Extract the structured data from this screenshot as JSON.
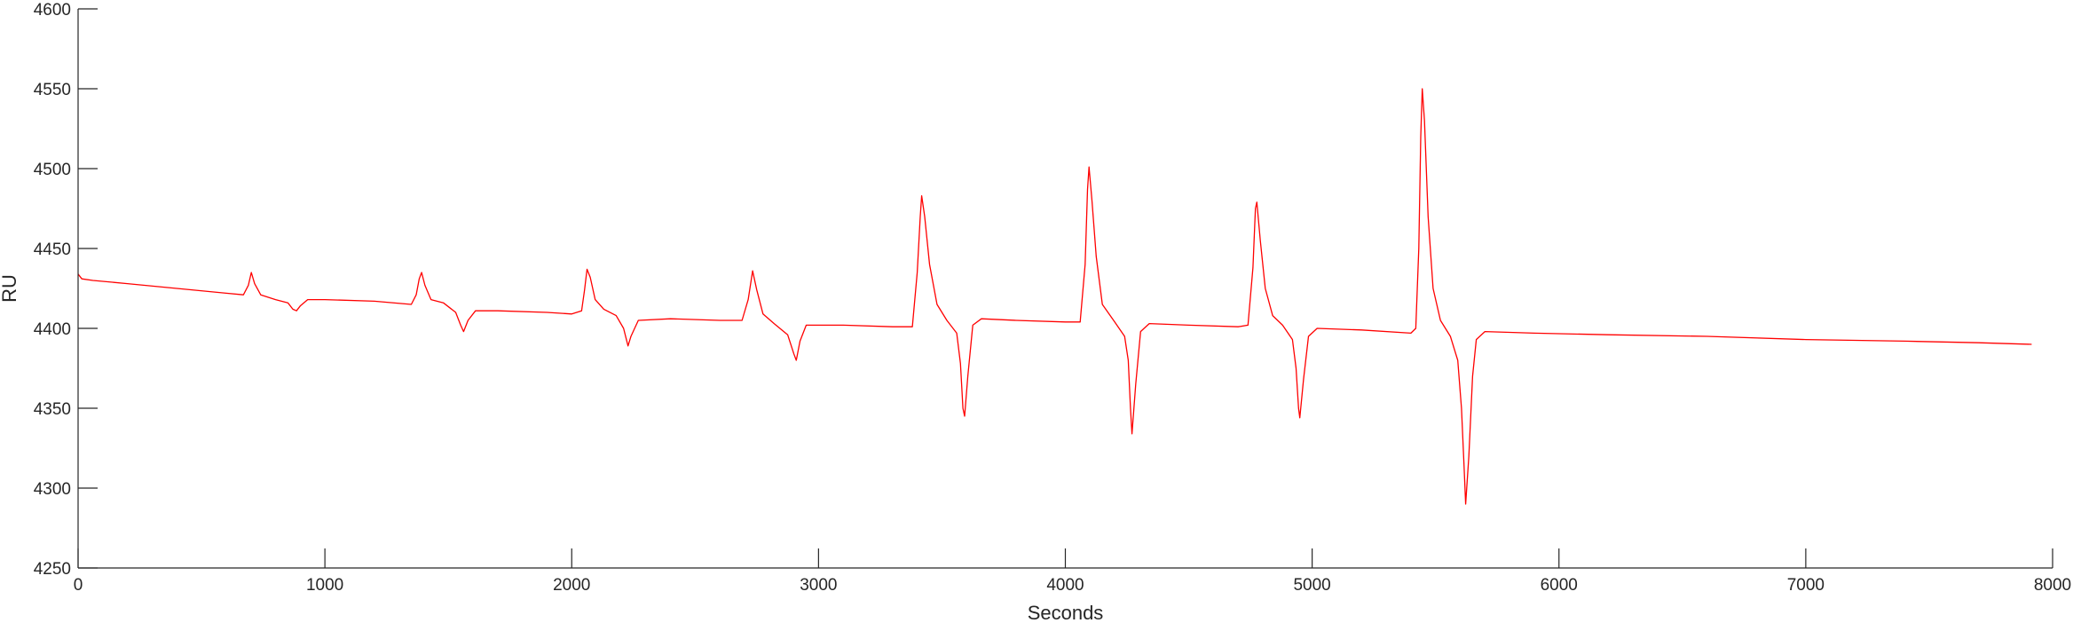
{
  "chart_data": {
    "type": "line",
    "title": "",
    "xlabel": "Seconds",
    "ylabel": "RU",
    "xlim": [
      0,
      8000
    ],
    "ylim": [
      4250,
      4600
    ],
    "xticks": [
      0,
      1000,
      2000,
      3000,
      4000,
      5000,
      6000,
      7000,
      8000
    ],
    "yticks": [
      4250,
      4300,
      4350,
      4400,
      4450,
      4500,
      4550,
      4600
    ],
    "grid": false,
    "legend": "none",
    "series": [
      {
        "color": "#ff0000",
        "points": [
          [
            0,
            4434
          ],
          [
            15,
            4431
          ],
          [
            60,
            4430
          ],
          [
            200,
            4428
          ],
          [
            400,
            4425
          ],
          [
            600,
            4422
          ],
          [
            670,
            4421
          ],
          [
            690,
            4427
          ],
          [
            702,
            4435
          ],
          [
            715,
            4428
          ],
          [
            740,
            4421
          ],
          [
            800,
            4418
          ],
          [
            850,
            4416
          ],
          [
            870,
            4412
          ],
          [
            885,
            4411
          ],
          [
            900,
            4414
          ],
          [
            930,
            4418
          ],
          [
            1000,
            4418
          ],
          [
            1200,
            4417
          ],
          [
            1350,
            4415
          ],
          [
            1370,
            4421
          ],
          [
            1382,
            4431
          ],
          [
            1392,
            4435
          ],
          [
            1405,
            4427
          ],
          [
            1430,
            4418
          ],
          [
            1480,
            4416
          ],
          [
            1530,
            4410
          ],
          [
            1550,
            4402
          ],
          [
            1562,
            4398
          ],
          [
            1580,
            4405
          ],
          [
            1610,
            4411
          ],
          [
            1700,
            4411
          ],
          [
            1900,
            4410
          ],
          [
            2000,
            4409
          ],
          [
            2040,
            4411
          ],
          [
            2052,
            4424
          ],
          [
            2062,
            4437
          ],
          [
            2075,
            4432
          ],
          [
            2095,
            4418
          ],
          [
            2130,
            4412
          ],
          [
            2180,
            4408
          ],
          [
            2210,
            4400
          ],
          [
            2228,
            4389
          ],
          [
            2240,
            4395
          ],
          [
            2270,
            4405
          ],
          [
            2400,
            4406
          ],
          [
            2600,
            4405
          ],
          [
            2690,
            4405
          ],
          [
            2715,
            4418
          ],
          [
            2733,
            4436
          ],
          [
            2750,
            4424
          ],
          [
            2775,
            4409
          ],
          [
            2820,
            4403
          ],
          [
            2875,
            4396
          ],
          [
            2900,
            4384
          ],
          [
            2910,
            4380
          ],
          [
            2925,
            4392
          ],
          [
            2950,
            4402
          ],
          [
            3100,
            4402
          ],
          [
            3300,
            4401
          ],
          [
            3380,
            4401
          ],
          [
            3400,
            4435
          ],
          [
            3412,
            4470
          ],
          [
            3418,
            4483
          ],
          [
            3430,
            4470
          ],
          [
            3450,
            4440
          ],
          [
            3480,
            4415
          ],
          [
            3520,
            4405
          ],
          [
            3560,
            4397
          ],
          [
            3575,
            4378
          ],
          [
            3585,
            4350
          ],
          [
            3592,
            4345
          ],
          [
            3605,
            4370
          ],
          [
            3625,
            4402
          ],
          [
            3660,
            4406
          ],
          [
            3800,
            4405
          ],
          [
            4000,
            4404
          ],
          [
            4060,
            4404
          ],
          [
            4080,
            4440
          ],
          [
            4090,
            4487
          ],
          [
            4096,
            4501
          ],
          [
            4108,
            4480
          ],
          [
            4125,
            4445
          ],
          [
            4150,
            4415
          ],
          [
            4200,
            4404
          ],
          [
            4240,
            4395
          ],
          [
            4255,
            4380
          ],
          [
            4264,
            4350
          ],
          [
            4270,
            4334
          ],
          [
            4285,
            4365
          ],
          [
            4305,
            4398
          ],
          [
            4340,
            4403
          ],
          [
            4500,
            4402
          ],
          [
            4700,
            4401
          ],
          [
            4740,
            4402
          ],
          [
            4760,
            4438
          ],
          [
            4770,
            4475
          ],
          [
            4776,
            4479
          ],
          [
            4790,
            4455
          ],
          [
            4810,
            4425
          ],
          [
            4840,
            4408
          ],
          [
            4880,
            4402
          ],
          [
            4920,
            4393
          ],
          [
            4935,
            4375
          ],
          [
            4945,
            4350
          ],
          [
            4950,
            4344
          ],
          [
            4965,
            4368
          ],
          [
            4985,
            4395
          ],
          [
            5020,
            4400
          ],
          [
            5200,
            4399
          ],
          [
            5400,
            4397
          ],
          [
            5420,
            4400
          ],
          [
            5432,
            4450
          ],
          [
            5440,
            4520
          ],
          [
            5446,
            4550
          ],
          [
            5455,
            4530
          ],
          [
            5470,
            4470
          ],
          [
            5490,
            4425
          ],
          [
            5520,
            4405
          ],
          [
            5560,
            4395
          ],
          [
            5590,
            4380
          ],
          [
            5605,
            4350
          ],
          [
            5615,
            4315
          ],
          [
            5622,
            4290
          ],
          [
            5635,
            4320
          ],
          [
            5650,
            4370
          ],
          [
            5665,
            4393
          ],
          [
            5700,
            4398
          ],
          [
            5900,
            4397
          ],
          [
            6200,
            4396
          ],
          [
            6600,
            4395
          ],
          [
            7000,
            4393
          ],
          [
            7400,
            4392
          ],
          [
            7700,
            4391
          ],
          [
            7915,
            4390
          ]
        ]
      }
    ]
  }
}
